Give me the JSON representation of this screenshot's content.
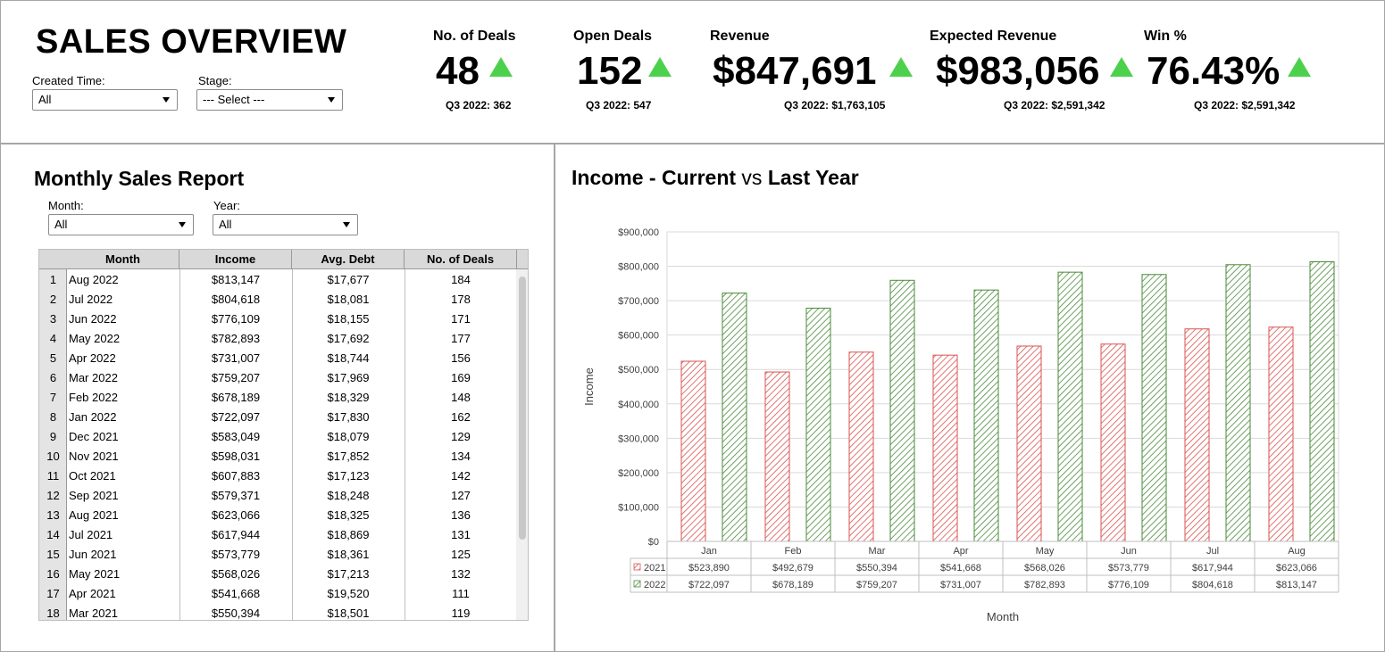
{
  "header": {
    "title": "SALES OVERVIEW",
    "filters": {
      "created_time_label": "Created Time:",
      "created_time_value": "All",
      "stage_label": "Stage:",
      "stage_value": "--- Select ---"
    }
  },
  "kpis": [
    {
      "label": "No. of Deals",
      "value": "48",
      "trend": "up",
      "sub": "Q3 2022: 362"
    },
    {
      "label": "Open Deals",
      "value": "152",
      "trend": "up",
      "sub": "Q3 2022: 547"
    },
    {
      "label": "Revenue",
      "value": "$847,691",
      "trend": "up",
      "sub": "Q3 2022: $1,763,105"
    },
    {
      "label": "Expected Revenue",
      "value": "$983,056",
      "trend": "up",
      "sub": "Q3 2022: $2,591,342"
    },
    {
      "label": "Win %",
      "value": "76.43%",
      "trend": "up",
      "sub": "Q3 2022: $2,591,342"
    }
  ],
  "monthly_report": {
    "title": "Monthly Sales Report",
    "month_label": "Month:",
    "month_value": "All",
    "year_label": "Year:",
    "year_value": "All",
    "columns": [
      "Month",
      "Income",
      "Avg. Debt",
      "No. of Deals"
    ],
    "rows": [
      [
        "1",
        "Aug 2022",
        "$813,147",
        "$17,677",
        "184"
      ],
      [
        "2",
        "Jul 2022",
        "$804,618",
        "$18,081",
        "178"
      ],
      [
        "3",
        "Jun 2022",
        "$776,109",
        "$18,155",
        "171"
      ],
      [
        "4",
        "May 2022",
        "$782,893",
        "$17,692",
        "177"
      ],
      [
        "5",
        "Apr 2022",
        "$731,007",
        "$18,744",
        "156"
      ],
      [
        "6",
        "Mar 2022",
        "$759,207",
        "$17,969",
        "169"
      ],
      [
        "7",
        "Feb 2022",
        "$678,189",
        "$18,329",
        "148"
      ],
      [
        "8",
        "Jan 2022",
        "$722,097",
        "$17,830",
        "162"
      ],
      [
        "9",
        "Dec 2021",
        "$583,049",
        "$18,079",
        "129"
      ],
      [
        "10",
        "Nov 2021",
        "$598,031",
        "$17,852",
        "134"
      ],
      [
        "11",
        "Oct 2021",
        "$607,883",
        "$17,123",
        "142"
      ],
      [
        "12",
        "Sep 2021",
        "$579,371",
        "$18,248",
        "127"
      ],
      [
        "13",
        "Aug 2021",
        "$623,066",
        "$18,325",
        "136"
      ],
      [
        "14",
        "Jul 2021",
        "$617,944",
        "$18,869",
        "131"
      ],
      [
        "15",
        "Jun 2021",
        "$573,779",
        "$18,361",
        "125"
      ],
      [
        "16",
        "May 2021",
        "$568,026",
        "$17,213",
        "132"
      ],
      [
        "17",
        "Apr 2021",
        "$541,668",
        "$19,520",
        "111"
      ],
      [
        "18",
        "Mar 2021",
        "$550,394",
        "$18,501",
        "119"
      ]
    ]
  },
  "income_chart": {
    "title_a": "Income - Current",
    "title_vs": "vs",
    "title_b": "Last Year"
  },
  "colors": {
    "kpi_up": "#4dd14d",
    "series_2021": "#d9534f",
    "series_2022": "#4a8a3a",
    "grid": "#d9d9d9"
  },
  "chart_data": {
    "type": "bar",
    "categories": [
      "Jan",
      "Feb",
      "Mar",
      "Apr",
      "May",
      "Jun",
      "Jul",
      "Aug"
    ],
    "series": [
      {
        "name": "2021",
        "values": [
          523890,
          492679,
          550394,
          541668,
          568026,
          573779,
          617944,
          623066
        ],
        "labels": [
          "$523,890",
          "$492,679",
          "$550,394",
          "$541,668",
          "$568,026",
          "$573,779",
          "$617,944",
          "$623,066"
        ]
      },
      {
        "name": "2022",
        "values": [
          722097,
          678189,
          759207,
          731007,
          782893,
          776109,
          804618,
          813147
        ],
        "labels": [
          "$722,097",
          "$678,189",
          "$759,207",
          "$731,007",
          "$782,893",
          "$776,109",
          "$804,618",
          "$813,147"
        ]
      }
    ],
    "xlabel": "Month",
    "ylabel": "Income",
    "ylim": [
      0,
      900000
    ],
    "yticks": [
      "$0",
      "$100,000",
      "$200,000",
      "$300,000",
      "$400,000",
      "$500,000",
      "$600,000",
      "$700,000",
      "$800,000",
      "$900,000"
    ],
    "grid": true,
    "legend": "data-table"
  }
}
